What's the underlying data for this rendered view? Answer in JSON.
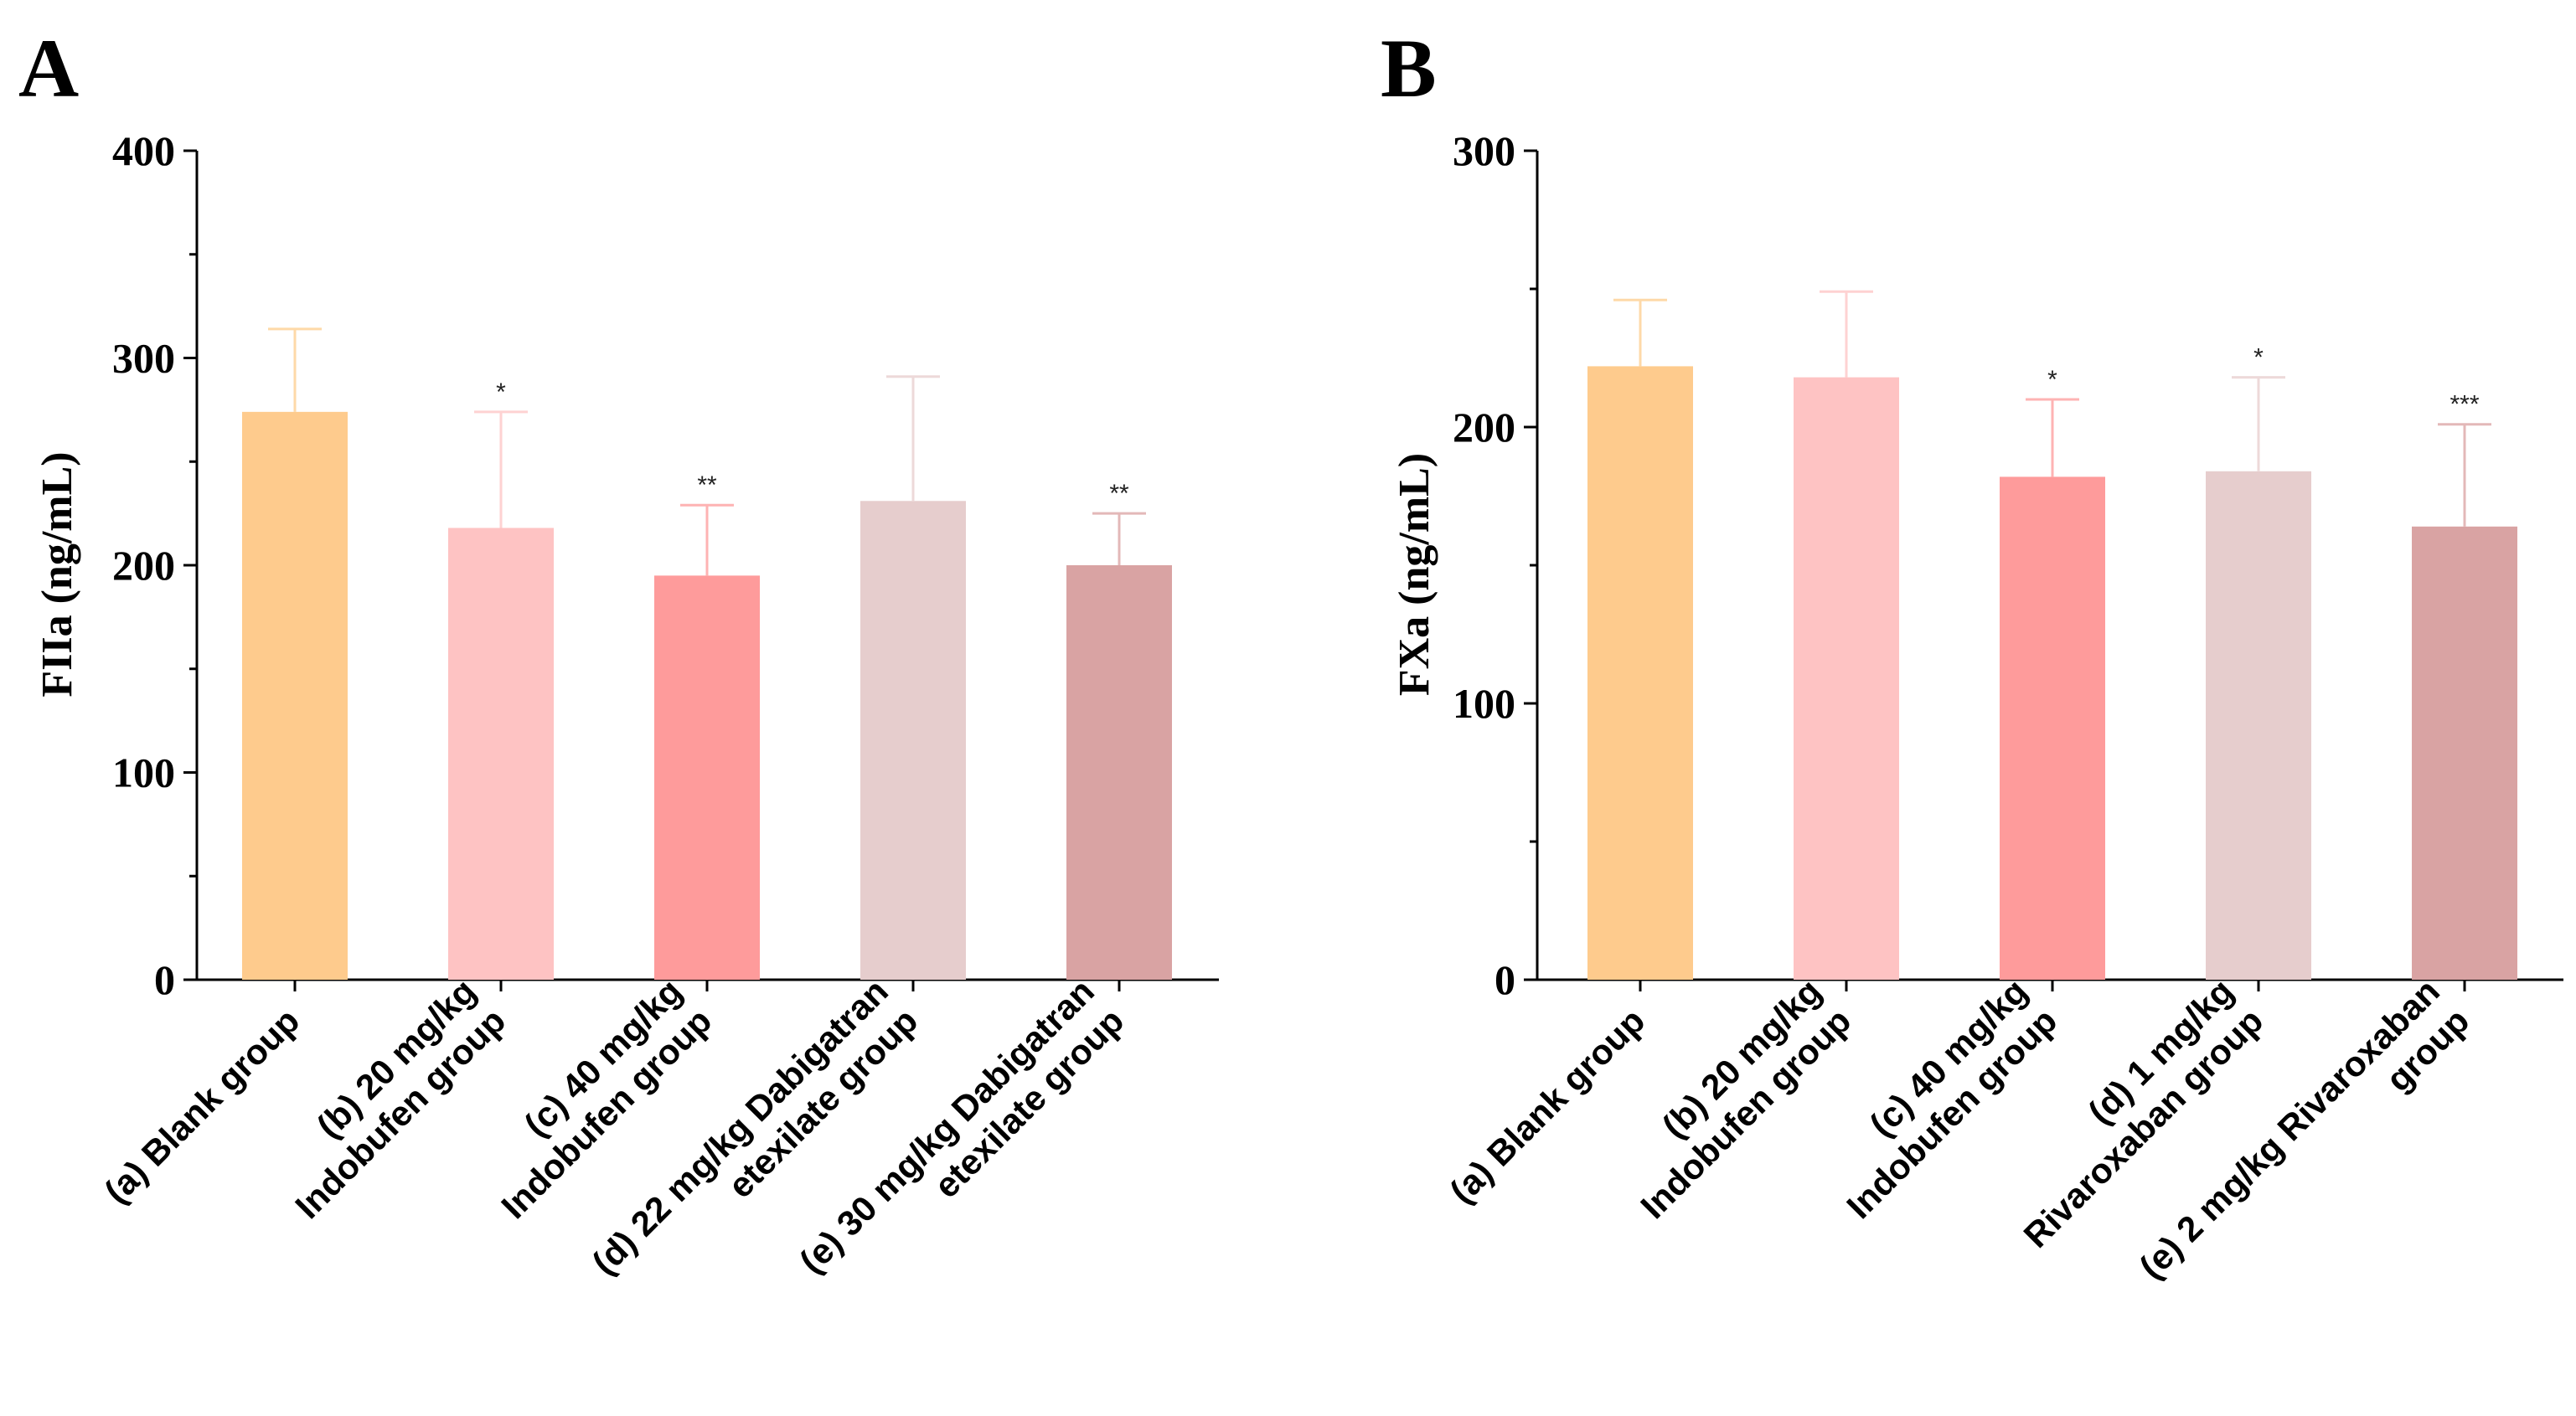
{
  "chart_data": [
    {
      "type": "bar",
      "panel": "A",
      "title": "",
      "xlabel": "",
      "ylabel": "FIIa (ng/mL)",
      "ylim": [
        0,
        400
      ],
      "yticks": [
        0,
        100,
        200,
        300,
        400
      ],
      "minor_ticks": true,
      "grid": false,
      "legend": "none",
      "categories": [
        [
          "(a)  Blank group"
        ],
        [
          "(b)  20 mg/kg",
          "Indobufen group"
        ],
        [
          "(c) 40 mg/kg",
          "Indobufen group"
        ],
        [
          "(d) 22 mg/kg Dabigatran",
          "etexilate group"
        ],
        [
          "(e) 30 mg/kg Dabigatran",
          "etexilate group"
        ]
      ],
      "values": [
        274,
        218,
        195,
        231,
        200
      ],
      "error": [
        40,
        56,
        34,
        60,
        25
      ],
      "significance": [
        "",
        "*",
        "**",
        "",
        "**"
      ],
      "colors": [
        "#FECB8D",
        "#FEC3C3",
        "#FE9B9B",
        "#E6CDCD",
        "#D9A3A3"
      ],
      "error_colors": [
        "#FED9A8",
        "#FED2D2",
        "#FEB3B3",
        "#EDD9D9",
        "#E3B8B8"
      ]
    },
    {
      "type": "bar",
      "panel": "B",
      "title": "",
      "xlabel": "",
      "ylabel": "FXa (ng/mL)",
      "ylim": [
        0,
        300
      ],
      "yticks": [
        0,
        100,
        200,
        300
      ],
      "minor_ticks": true,
      "grid": false,
      "legend": "none",
      "categories": [
        [
          "(a)  Blank group"
        ],
        [
          "(b)  20 mg/kg",
          "Indobufen group"
        ],
        [
          "(c)  40 mg/kg",
          "Indobufen group"
        ],
        [
          "(d)  1 mg/kg",
          "Rivaroxaban group"
        ],
        [
          "(e)  2 mg/kg Rivaroxaban",
          "group"
        ]
      ],
      "values": [
        222,
        218,
        182,
        184,
        164
      ],
      "error": [
        24,
        31,
        28,
        34,
        37
      ],
      "significance": [
        "",
        "",
        "*",
        "*",
        "***"
      ],
      "colors": [
        "#FECB8D",
        "#FEC3C3",
        "#FE9B9B",
        "#E6CDCD",
        "#D9A3A3"
      ],
      "error_colors": [
        "#FED9A8",
        "#FED2D2",
        "#FEB3B3",
        "#EDD9D9",
        "#E3B8B8"
      ]
    }
  ]
}
